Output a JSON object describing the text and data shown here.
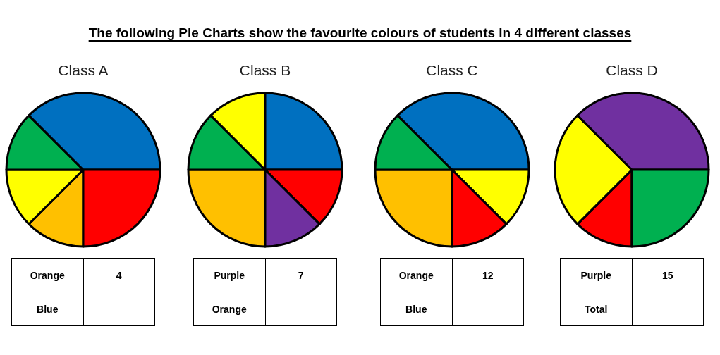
{
  "chart_data": [
    {
      "type": "other",
      "title": "The following Pie Charts show the favourite colours of students in 4 different classes"
    },
    {
      "type": "pie",
      "title": "Class A",
      "categories": [
        null,
        null,
        null,
        null,
        null
      ],
      "values": [
        12.5,
        12.5,
        12.5,
        37.5,
        25
      ],
      "colors": [
        "#ffc000",
        "#ffff00",
        "#00b050",
        "#0070c0",
        "#ff0000"
      ],
      "annotations": [
        "Orange",
        "4",
        "Blue"
      ]
    },
    {
      "type": "pie",
      "title": "Class B",
      "categories": [
        null,
        null,
        null,
        null,
        null,
        null
      ],
      "values": [
        25,
        12.5,
        12.5,
        25,
        12.5,
        12.5
      ],
      "colors": [
        "#ffc000",
        "#00b050",
        "#ffff00",
        "#0070c0",
        "#ff0000",
        "#7030a0"
      ],
      "annotations": [
        "Purple",
        "7",
        "Orange"
      ]
    },
    {
      "type": "pie",
      "title": "Class C",
      "categories": [
        null,
        null,
        null,
        null,
        null
      ],
      "values": [
        25,
        12.5,
        37.5,
        12.5,
        12.5
      ],
      "colors": [
        "#ffc000",
        "#00b050",
        "#0070c0",
        "#ffff00",
        "#ff0000"
      ],
      "annotations": [
        "Orange",
        "12",
        "Blue"
      ]
    },
    {
      "type": "pie",
      "title": "Class D",
      "categories": [
        null,
        null,
        null,
        null
      ],
      "values": [
        12.5,
        25,
        37.5,
        25
      ],
      "colors": [
        "#ff0000",
        "#ffff00",
        "#7030a0",
        "#00b050"
      ],
      "annotations": [
        "Purple",
        "15",
        "Total"
      ]
    }
  ]
}
